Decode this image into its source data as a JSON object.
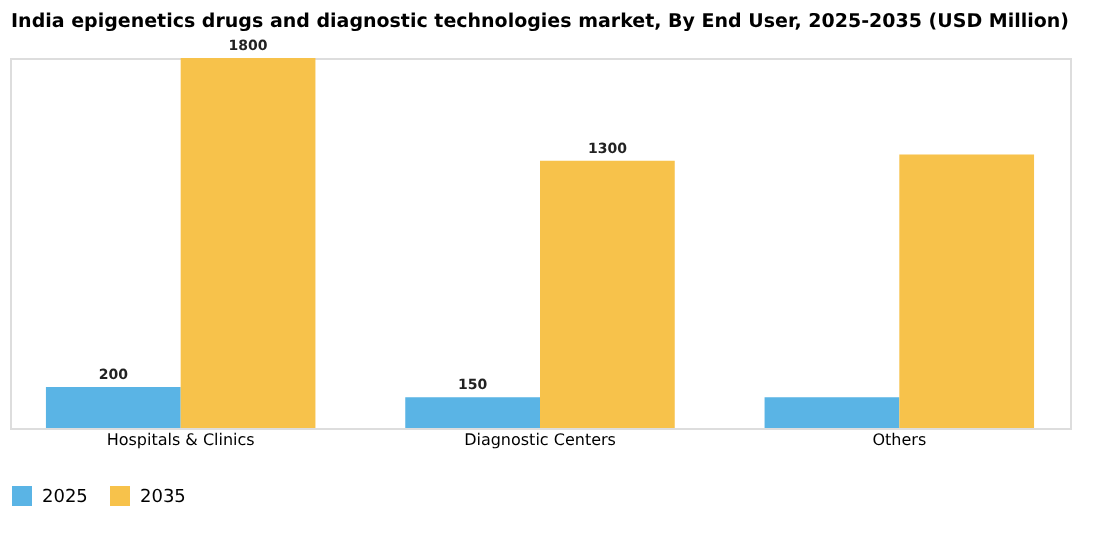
{
  "chart_data": {
    "type": "bar",
    "title": "India epigenetics drugs and diagnostic technologies market, By End User, 2025-2035 (USD Million)",
    "categories": [
      "Hospitals & Clinics",
      "Diagnostic Centers",
      "Others"
    ],
    "series": [
      {
        "name": "2025",
        "color": "#5ab4e5",
        "values": [
          200,
          150,
          150
        ],
        "value_labels": [
          "200",
          "150",
          null
        ]
      },
      {
        "name": "2035",
        "color": "#f7c24b",
        "values": [
          1800,
          1300,
          1330
        ],
        "value_labels": [
          "1800",
          "1300",
          null
        ]
      }
    ],
    "legend": "bottom",
    "grid": false
  }
}
